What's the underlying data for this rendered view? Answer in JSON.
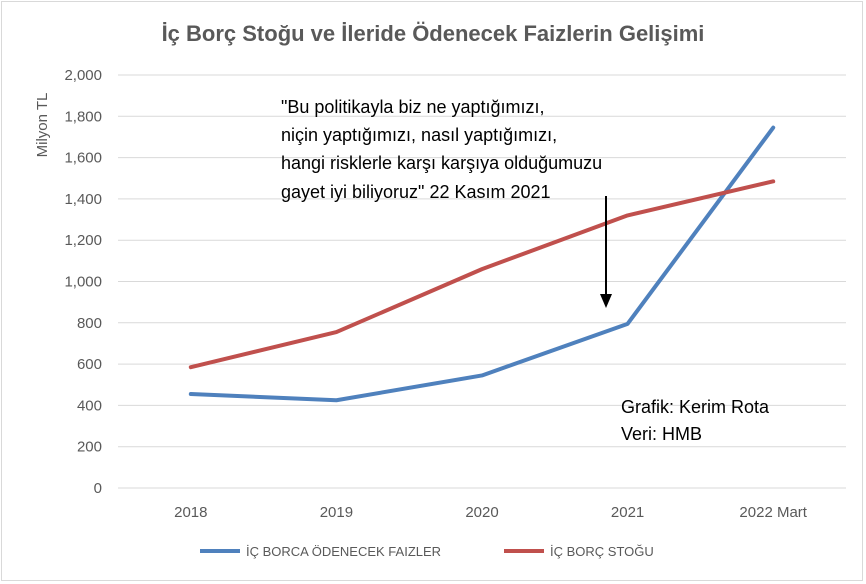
{
  "chart_data": {
    "type": "line",
    "title": "İç Borç Stoğu ve İleride Ödenecek Faizlerin Gelişimi",
    "ylabel": "Milyon TL",
    "xlabel": "",
    "categories": [
      "2018",
      "2019",
      "2020",
      "2021",
      "2022 Mart"
    ],
    "yticks": [
      "0",
      "200",
      "400",
      "600",
      "800",
      "1,000",
      "1,200",
      "1,400",
      "1,600",
      "1,800",
      "2,000"
    ],
    "ylim": [
      0,
      2000
    ],
    "grid": true,
    "legend_position": "bottom",
    "series": [
      {
        "name": "İÇ BORCA ÖDENECEK FAIZLER",
        "color": "#4f81bd",
        "values": [
          455,
          425,
          545,
          795,
          1745
        ]
      },
      {
        "name": "İÇ BORÇ STOĞU",
        "color": "#c0504d",
        "values": [
          585,
          755,
          1060,
          1320,
          1485
        ]
      }
    ],
    "annotations": {
      "quote_lines": [
        "\"Bu politikayla biz ne yaptığımızı,",
        "niçin yaptığımızı, nasıl yaptığımızı,",
        "hangi risklerle karşı karşıya olduğumuzu",
        "gayet iyi biliyoruz\"  22 Kasım 2021"
      ],
      "credit_lines": [
        "Grafik: Kerim Rota",
        "Veri: HMB"
      ]
    }
  }
}
